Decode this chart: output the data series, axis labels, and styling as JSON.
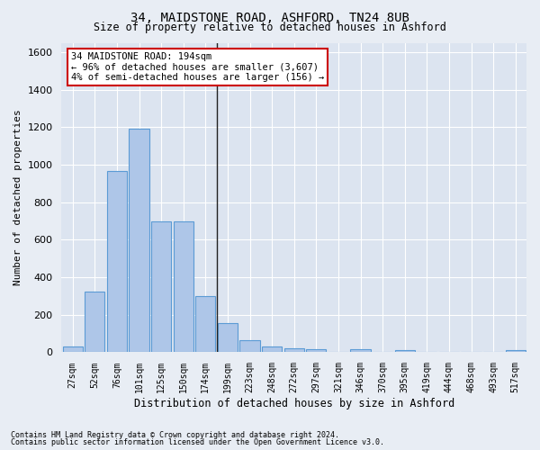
{
  "title_line1": "34, MAIDSTONE ROAD, ASHFORD, TN24 8UB",
  "title_line2": "Size of property relative to detached houses in Ashford",
  "xlabel": "Distribution of detached houses by size in Ashford",
  "ylabel": "Number of detached properties",
  "footer_line1": "Contains HM Land Registry data © Crown copyright and database right 2024.",
  "footer_line2": "Contains public sector information licensed under the Open Government Licence v3.0.",
  "annotation_line1": "34 MAIDSTONE ROAD: 194sqm",
  "annotation_line2": "← 96% of detached houses are smaller (3,607)",
  "annotation_line3": "4% of semi-detached houses are larger (156) →",
  "bar_labels": [
    "27sqm",
    "52sqm",
    "76sqm",
    "101sqm",
    "125sqm",
    "150sqm",
    "174sqm",
    "199sqm",
    "223sqm",
    "248sqm",
    "272sqm",
    "297sqm",
    "321sqm",
    "346sqm",
    "370sqm",
    "395sqm",
    "419sqm",
    "444sqm",
    "468sqm",
    "493sqm",
    "517sqm"
  ],
  "bar_values": [
    30,
    325,
    965,
    1190,
    700,
    700,
    300,
    155,
    65,
    30,
    20,
    18,
    0,
    15,
    0,
    10,
    0,
    0,
    0,
    0,
    10
  ],
  "bar_color": "#aec6e8",
  "bar_edge_color": "#5b9bd5",
  "vline_index": 7,
  "vline_color": "#222222",
  "ylim": [
    0,
    1650
  ],
  "yticks": [
    0,
    200,
    400,
    600,
    800,
    1000,
    1200,
    1400,
    1600
  ],
  "bg_color": "#e8edf4",
  "plot_bg_color": "#dce4f0",
  "annotation_box_color": "#ffffff",
  "annotation_box_edge_color": "#cc0000"
}
